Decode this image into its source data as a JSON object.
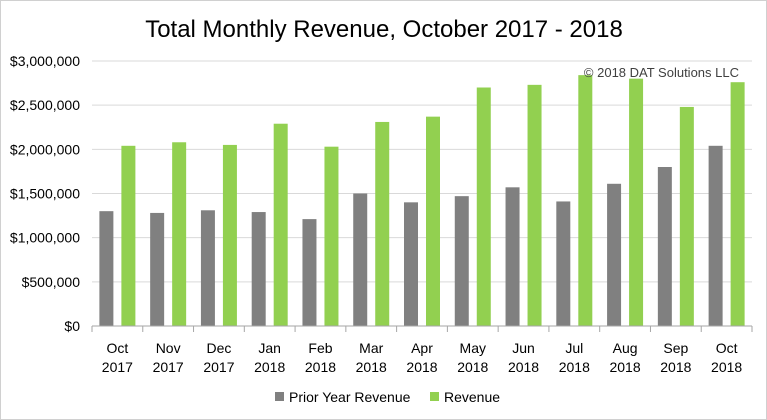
{
  "chart_data": {
    "type": "bar",
    "title": "Total Monthly Revenue, October 2017 - 2018",
    "annotation": "© 2018 DAT Solutions LLC",
    "categories": [
      [
        "Oct",
        "2017"
      ],
      [
        "Nov",
        "2017"
      ],
      [
        "Dec",
        "2017"
      ],
      [
        "Jan",
        "2018"
      ],
      [
        "Feb",
        "2018"
      ],
      [
        "Mar",
        "2018"
      ],
      [
        "Apr",
        "2018"
      ],
      [
        "May",
        "2018"
      ],
      [
        "Jun",
        "2018"
      ],
      [
        "Jul",
        "2018"
      ],
      [
        "Aug",
        "2018"
      ],
      [
        "Sep",
        "2018"
      ],
      [
        "Oct",
        "2018"
      ]
    ],
    "series": [
      {
        "name": "Prior Year Revenue",
        "color": "#808080",
        "values": [
          1300000,
          1280000,
          1310000,
          1290000,
          1210000,
          1500000,
          1400000,
          1470000,
          1570000,
          1410000,
          1610000,
          1800000,
          2040000
        ]
      },
      {
        "name": "Revenue",
        "color": "#92d050",
        "values": [
          2040000,
          2080000,
          2050000,
          2290000,
          2030000,
          2310000,
          2370000,
          2700000,
          2730000,
          2840000,
          2800000,
          2480000,
          2760000
        ]
      }
    ],
    "y_ticks": [
      "$0",
      "$500,000",
      "$1,000,000",
      "$1,500,000",
      "$2,000,000",
      "$2,500,000",
      "$3,000,000"
    ],
    "ylim": [
      0,
      3000000
    ],
    "y_step": 500000,
    "grid": true,
    "legend_position": "bottom"
  }
}
